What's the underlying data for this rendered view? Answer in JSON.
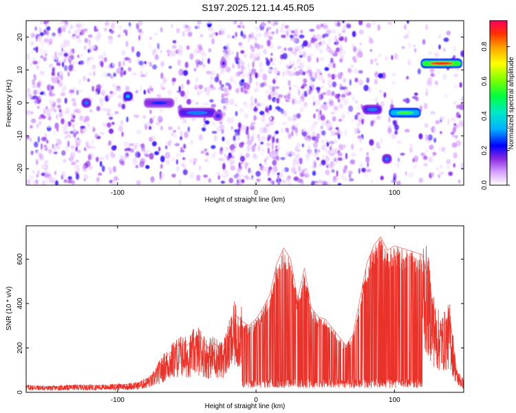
{
  "title": "S197.2025.121.14.45.R05",
  "chart_data": [
    {
      "type": "heatmap",
      "xlabel": "Height of straight line (km)",
      "ylabel": "Frequency (Hz)",
      "xlim": [
        -166,
        150
      ],
      "ylim": [
        -25,
        25
      ],
      "xticks": [
        -100,
        0,
        100
      ],
      "yticks": [
        -20,
        -10,
        0,
        10,
        20
      ],
      "colorbar": {
        "label": "Normalized spectral amplitude",
        "range": [
          0,
          0.95
        ],
        "ticks": [
          0.0,
          0.2,
          0.4,
          0.6,
          0.8
        ],
        "tick_labels": [
          "0.0",
          "0.2",
          "0.4",
          "0.6",
          "0.8"
        ]
      },
      "features": [
        {
          "x": [
            -125,
            -120
          ],
          "freq": 0,
          "amplitude": 0.3
        },
        {
          "x": [
            -95,
            -90
          ],
          "freq": 2,
          "amplitude": 0.35
        },
        {
          "x": [
            -80,
            -60
          ],
          "freq": 0,
          "amplitude": 0.25
        },
        {
          "x": [
            -55,
            -30
          ],
          "freq": -3,
          "amplitude": 0.3
        },
        {
          "x": [
            -30,
            -25
          ],
          "freq": -4,
          "amplitude": 0.25
        },
        {
          "x": [
            -25,
            -22
          ],
          "freq": 12,
          "amplitude": 0.2
        },
        {
          "x": [
            78,
            90
          ],
          "freq": -2,
          "amplitude": 0.3
        },
        {
          "x": [
            92,
            97
          ],
          "freq": -17,
          "amplitude": 0.3
        },
        {
          "x": [
            97,
            118
          ],
          "freq": -3,
          "amplitude": 0.55
        },
        {
          "x": [
            120,
            148
          ],
          "freq": 12,
          "amplitude": 0.9
        }
      ]
    },
    {
      "type": "line",
      "xlabel": "Height of straight line (km)",
      "ylabel": "SNR (10 * v/v)",
      "xlim": [
        -166,
        150
      ],
      "ylim": [
        0,
        750
      ],
      "xticks": [
        -100,
        0,
        100
      ],
      "yticks": [
        0,
        200,
        400,
        600
      ],
      "color": "#e8322a",
      "x": [
        -166,
        -150,
        -130,
        -110,
        -95,
        -85,
        -75,
        -70,
        -65,
        -60,
        -55,
        -50,
        -45,
        -40,
        -35,
        -30,
        -25,
        -20,
        -15,
        -10,
        -5,
        0,
        5,
        10,
        15,
        20,
        25,
        30,
        35,
        40,
        45,
        50,
        55,
        60,
        65,
        70,
        75,
        80,
        85,
        90,
        95,
        100,
        105,
        110,
        115,
        120,
        125,
        130,
        135,
        140,
        145,
        150
      ],
      "values": [
        30,
        25,
        30,
        30,
        35,
        40,
        70,
        120,
        160,
        190,
        220,
        210,
        240,
        250,
        200,
        220,
        190,
        260,
        350,
        320,
        300,
        330,
        380,
        440,
        580,
        650,
        600,
        420,
        560,
        380,
        340,
        330,
        290,
        250,
        210,
        260,
        420,
        580,
        660,
        700,
        640,
        660,
        650,
        640,
        630,
        620,
        500,
        320,
        300,
        340,
        90,
        50
      ]
    }
  ]
}
